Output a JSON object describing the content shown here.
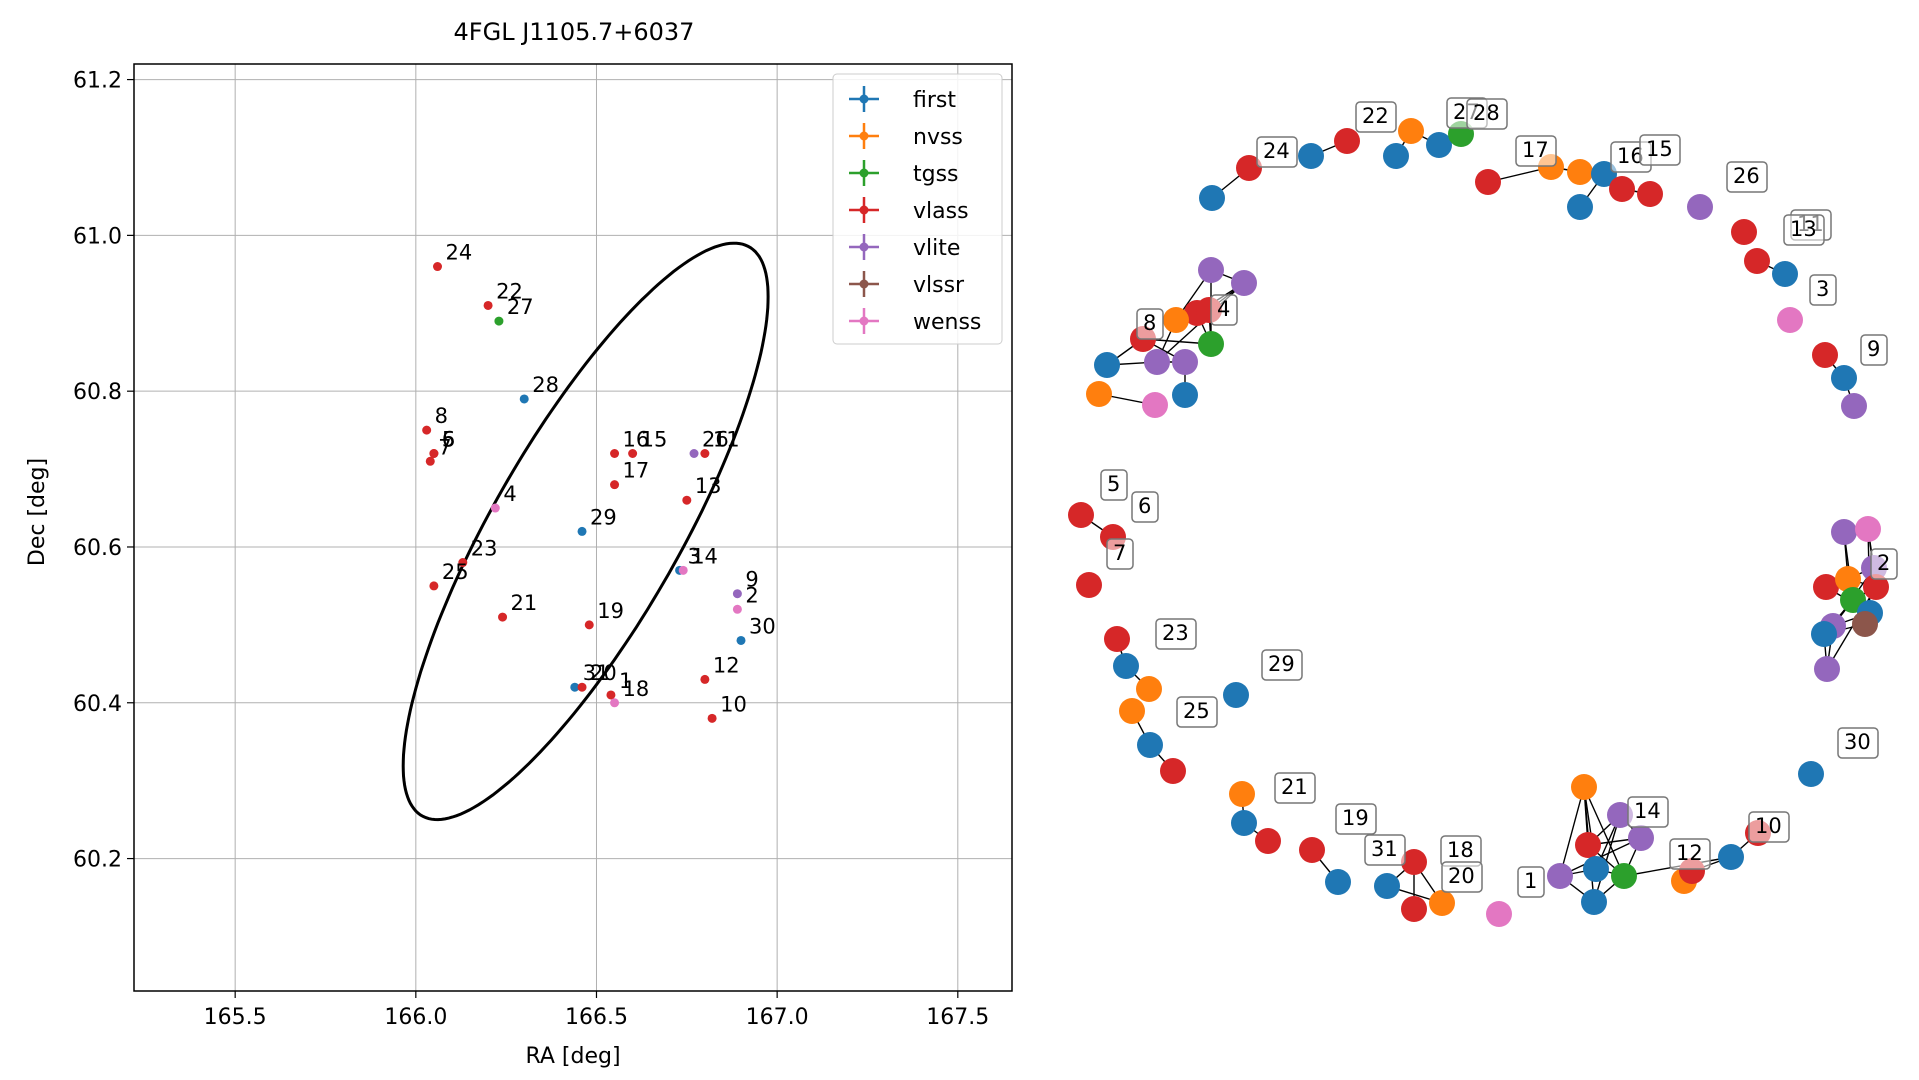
{
  "chart_data": [
    {
      "type": "scatter",
      "title": "4FGL J1105.7+6037",
      "xlabel": "RA [deg]",
      "ylabel": "Dec [deg]",
      "xlim": [
        165.22,
        167.65
      ],
      "ylim": [
        60.03,
        61.22
      ],
      "xticks": [
        165.5,
        166.0,
        166.5,
        167.0,
        167.5
      ],
      "xtick_labels": [
        "165.5",
        "166.0",
        "166.5",
        "167.0",
        "167.5"
      ],
      "yticks": [
        60.2,
        60.4,
        60.6,
        60.8,
        61.0,
        61.2
      ],
      "ytick_labels": [
        "60.2",
        "60.4",
        "60.6",
        "60.8",
        "61.0",
        "61.2"
      ],
      "grid": true,
      "legend_position": "top-right",
      "legend": [
        {
          "name": "first",
          "color": "#1f77b4"
        },
        {
          "name": "nvss",
          "color": "#ff7f0e"
        },
        {
          "name": "tgss",
          "color": "#2ca02c"
        },
        {
          "name": "vlass",
          "color": "#d62728"
        },
        {
          "name": "vlite",
          "color": "#9467bd"
        },
        {
          "name": "vlssr",
          "color": "#8c564b"
        },
        {
          "name": "wenss",
          "color": "#e377c2"
        }
      ],
      "ellipse": {
        "center": [
          166.47,
          60.62
        ],
        "extreme_ra": [
          165.94,
          166.95
        ],
        "extreme_dec": [
          60.25,
          60.99
        ],
        "color": "#000000"
      },
      "points": [
        {
          "label": "24",
          "ra": 166.06,
          "dec": 60.96,
          "color": "#d62728"
        },
        {
          "label": "22",
          "ra": 166.2,
          "dec": 60.91,
          "color": "#d62728"
        },
        {
          "label": "27",
          "ra": 166.23,
          "dec": 60.89,
          "color": "#2ca02c"
        },
        {
          "label": "28",
          "ra": 166.3,
          "dec": 60.79,
          "color": "#1f77b4"
        },
        {
          "label": "8",
          "ra": 166.03,
          "dec": 60.75,
          "color": "#d62728"
        },
        {
          "label": "5",
          "ra": 166.05,
          "dec": 60.72,
          "color": "#d62728"
        },
        {
          "label": "6",
          "ra": 166.05,
          "dec": 60.72,
          "color": "#d62728"
        },
        {
          "label": "7",
          "ra": 166.04,
          "dec": 60.71,
          "color": "#d62728"
        },
        {
          "label": "16",
          "ra": 166.55,
          "dec": 60.72,
          "color": "#d62728"
        },
        {
          "label": "15",
          "ra": 166.6,
          "dec": 60.72,
          "color": "#d62728"
        },
        {
          "label": "26",
          "ra": 166.77,
          "dec": 60.72,
          "color": "#9467bd"
        },
        {
          "label": "11",
          "ra": 166.8,
          "dec": 60.72,
          "color": "#d62728"
        },
        {
          "label": "17",
          "ra": 166.55,
          "dec": 60.68,
          "color": "#d62728"
        },
        {
          "label": "4",
          "ra": 166.22,
          "dec": 60.65,
          "color": "#e377c2"
        },
        {
          "label": "13",
          "ra": 166.75,
          "dec": 60.66,
          "color": "#d62728"
        },
        {
          "label": "29",
          "ra": 166.46,
          "dec": 60.62,
          "color": "#1f77b4"
        },
        {
          "label": "23",
          "ra": 166.13,
          "dec": 60.58,
          "color": "#d62728"
        },
        {
          "label": "3",
          "ra": 166.73,
          "dec": 60.57,
          "color": "#1f77b4"
        },
        {
          "label": "14",
          "ra": 166.74,
          "dec": 60.57,
          "color": "#e377c2"
        },
        {
          "label": "9",
          "ra": 166.89,
          "dec": 60.54,
          "color": "#9467bd"
        },
        {
          "label": "25",
          "ra": 166.05,
          "dec": 60.55,
          "color": "#d62728"
        },
        {
          "label": "2",
          "ra": 166.89,
          "dec": 60.52,
          "color": "#e377c2"
        },
        {
          "label": "21",
          "ra": 166.24,
          "dec": 60.51,
          "color": "#d62728"
        },
        {
          "label": "19",
          "ra": 166.48,
          "dec": 60.5,
          "color": "#d62728"
        },
        {
          "label": "30",
          "ra": 166.9,
          "dec": 60.48,
          "color": "#1f77b4"
        },
        {
          "label": "12",
          "ra": 166.8,
          "dec": 60.43,
          "color": "#d62728"
        },
        {
          "label": "31",
          "ra": 166.44,
          "dec": 60.42,
          "color": "#1f77b4"
        },
        {
          "label": "20",
          "ra": 166.46,
          "dec": 60.42,
          "color": "#d62728"
        },
        {
          "label": "1",
          "ra": 166.54,
          "dec": 60.41,
          "color": "#d62728"
        },
        {
          "label": "18",
          "ra": 166.55,
          "dec": 60.4,
          "color": "#e377c2"
        },
        {
          "label": "10",
          "ra": 166.82,
          "dec": 60.38,
          "color": "#d62728"
        }
      ]
    },
    {
      "type": "network",
      "nodes": [
        {
          "id": "n0",
          "label": "24",
          "color": "#d62728"
        },
        {
          "id": "n1",
          "color": "#1f77b4"
        },
        {
          "id": "n2",
          "color": "#1f77b4"
        },
        {
          "id": "n3",
          "label": "22",
          "color": "#d62728"
        },
        {
          "id": "n4",
          "color": "#1f77b4"
        },
        {
          "id": "n5",
          "color": "#ff7f0e"
        },
        {
          "id": "n6",
          "label": "27",
          "color": "#1f77b4"
        },
        {
          "id": "n7",
          "label": "28",
          "color": "#2ca02c"
        },
        {
          "id": "n8",
          "label": "17",
          "color": "#d62728"
        },
        {
          "id": "n9",
          "color": "#ff7f0e"
        },
        {
          "id": "n10",
          "color": "#ff7f0e"
        },
        {
          "id": "n11",
          "color": "#1f77b4"
        },
        {
          "id": "n12",
          "label": "16",
          "color": "#1f77b4"
        },
        {
          "id": "n13",
          "label": "15",
          "color": "#d62728"
        },
        {
          "id": "n14",
          "color": "#d62728"
        },
        {
          "id": "n15",
          "label": "26",
          "color": "#9467bd"
        },
        {
          "id": "n16",
          "label": "11",
          "color": "#d62728"
        },
        {
          "id": "n17",
          "label": "13",
          "color": "#d62728"
        },
        {
          "id": "n18",
          "color": "#1f77b4"
        },
        {
          "id": "n19",
          "label": "3",
          "color": "#e377c2"
        },
        {
          "id": "n20",
          "label": "9",
          "color": "#d62728"
        },
        {
          "id": "n21",
          "color": "#1f77b4"
        },
        {
          "id": "n22",
          "color": "#9467bd"
        },
        {
          "id": "n23",
          "color": "#9467bd"
        },
        {
          "id": "n24",
          "color": "#9467bd"
        },
        {
          "id": "n25",
          "color": "#d62728"
        },
        {
          "id": "n26",
          "color": "#ff7f0e"
        },
        {
          "id": "n27",
          "label": "4",
          "color": "#d62728"
        },
        {
          "id": "n28",
          "color": "#2ca02c"
        },
        {
          "id": "n29",
          "label": "8",
          "color": "#d62728"
        },
        {
          "id": "n30",
          "color": "#1f77b4"
        },
        {
          "id": "n31",
          "color": "#9467bd"
        },
        {
          "id": "n32",
          "color": "#9467bd"
        },
        {
          "id": "n33",
          "color": "#1f77b4"
        },
        {
          "id": "n34",
          "color": "#ff7f0e"
        },
        {
          "id": "n35",
          "color": "#e377c2"
        },
        {
          "id": "n36",
          "label": "5",
          "color": "#d62728"
        },
        {
          "id": "n37",
          "label": "6",
          "color": "#d62728"
        },
        {
          "id": "n38",
          "label": "7",
          "color": "#d62728"
        },
        {
          "id": "n39",
          "color": "#9467bd"
        },
        {
          "id": "n40",
          "color": "#e377c2"
        },
        {
          "id": "n41",
          "label": "2",
          "color": "#9467bd"
        },
        {
          "id": "n42",
          "color": "#d62728"
        },
        {
          "id": "n43",
          "color": "#ff7f0e"
        },
        {
          "id": "n44",
          "color": "#d62728"
        },
        {
          "id": "n45",
          "color": "#2ca02c"
        },
        {
          "id": "n46",
          "color": "#9467bd"
        },
        {
          "id": "n47",
          "color": "#1f77b4"
        },
        {
          "id": "n48",
          "color": "#8c564b"
        },
        {
          "id": "n49",
          "color": "#1f77b4"
        },
        {
          "id": "n50",
          "color": "#9467bd"
        },
        {
          "id": "n51",
          "label": "23",
          "color": "#d62728"
        },
        {
          "id": "n52",
          "color": "#1f77b4"
        },
        {
          "id": "n53",
          "color": "#ff7f0e"
        },
        {
          "id": "n54",
          "label": "25",
          "color": "#ff7f0e"
        },
        {
          "id": "n55",
          "color": "#1f77b4"
        },
        {
          "id": "n56",
          "color": "#d62728"
        },
        {
          "id": "n57",
          "label": "29",
          "color": "#1f77b4"
        },
        {
          "id": "n58",
          "label": "30",
          "color": "#1f77b4"
        },
        {
          "id": "n59",
          "label": "21",
          "color": "#ff7f0e"
        },
        {
          "id": "n60",
          "color": "#1f77b4"
        },
        {
          "id": "n61",
          "color": "#d62728"
        },
        {
          "id": "n62",
          "label": "19",
          "color": "#d62728"
        },
        {
          "id": "n63",
          "label": "31",
          "color": "#1f77b4"
        },
        {
          "id": "n64",
          "color": "#1f77b4"
        },
        {
          "id": "n65",
          "label": "18",
          "color": "#d62728"
        },
        {
          "id": "n66",
          "label": "20",
          "color": "#ff7f0e"
        },
        {
          "id": "n67",
          "color": "#d62728"
        },
        {
          "id": "n68",
          "label": "1",
          "color": "#e377c2"
        },
        {
          "id": "n69",
          "color": "#ff7f0e"
        },
        {
          "id": "n70",
          "color": "#d62728"
        },
        {
          "id": "n71",
          "label": "14",
          "color": "#9467bd"
        },
        {
          "id": "n72",
          "color": "#9467bd"
        },
        {
          "id": "n73",
          "color": "#9467bd"
        },
        {
          "id": "n74",
          "color": "#1f77b4"
        },
        {
          "id": "n75",
          "color": "#2ca02c"
        },
        {
          "id": "n76",
          "color": "#1f77b4"
        },
        {
          "id": "n77",
          "label": "12",
          "color": "#ff7f0e"
        },
        {
          "id": "n78",
          "color": "#d62728"
        },
        {
          "id": "n79",
          "color": "#1f77b4"
        },
        {
          "id": "n80",
          "label": "10",
          "color": "#d62728"
        }
      ],
      "edges": [
        [
          "n0",
          "n1"
        ],
        [
          "n2",
          "n3"
        ],
        [
          "n4",
          "n5"
        ],
        [
          "n5",
          "n6"
        ],
        [
          "n6",
          "n7"
        ],
        [
          "n8",
          "n9"
        ],
        [
          "n9",
          "n10"
        ],
        [
          "n11",
          "n12"
        ],
        [
          "n12",
          "n13"
        ],
        [
          "n13",
          "n14"
        ],
        [
          "n17",
          "n18"
        ],
        [
          "n20",
          "n21"
        ],
        [
          "n21",
          "n22"
        ],
        [
          "n23",
          "n24"
        ],
        [
          "n24",
          "n25"
        ],
        [
          "n25",
          "n26"
        ],
        [
          "n26",
          "n27"
        ],
        [
          "n27",
          "n28"
        ],
        [
          "n28",
          "n29"
        ],
        [
          "n29",
          "n30"
        ],
        [
          "n30",
          "n31"
        ],
        [
          "n31",
          "n32"
        ],
        [
          "n32",
          "n33"
        ],
        [
          "n23",
          "n26"
        ],
        [
          "n23",
          "n28"
        ],
        [
          "n24",
          "n27"
        ],
        [
          "n24",
          "n31"
        ],
        [
          "n25",
          "n28"
        ],
        [
          "n26",
          "n31"
        ],
        [
          "n29",
          "n32"
        ],
        [
          "n34",
          "n35"
        ],
        [
          "n36",
          "n37"
        ],
        [
          "n51",
          "n52"
        ],
        [
          "n52",
          "n53"
        ],
        [
          "n54",
          "n55"
        ],
        [
          "n55",
          "n56"
        ],
        [
          "n59",
          "n60"
        ],
        [
          "n60",
          "n61"
        ],
        [
          "n62",
          "n63"
        ],
        [
          "n64",
          "n65"
        ],
        [
          "n65",
          "n66"
        ],
        [
          "n64",
          "n66"
        ],
        [
          "n67",
          "n65"
        ],
        [
          "n39",
          "n40"
        ],
        [
          "n40",
          "n41"
        ],
        [
          "n41",
          "n42"
        ],
        [
          "n42",
          "n43"
        ],
        [
          "n43",
          "n44"
        ],
        [
          "n44",
          "n45"
        ],
        [
          "n45",
          "n46"
        ],
        [
          "n46",
          "n47"
        ],
        [
          "n47",
          "n48"
        ],
        [
          "n48",
          "n49"
        ],
        [
          "n49",
          "n50"
        ],
        [
          "n39",
          "n43"
        ],
        [
          "n39",
          "n45"
        ],
        [
          "n40",
          "n44"
        ],
        [
          "n40",
          "n47"
        ],
        [
          "n41",
          "n46"
        ],
        [
          "n42",
          "n47"
        ],
        [
          "n43",
          "n48"
        ],
        [
          "n44",
          "n50"
        ],
        [
          "n45",
          "n49"
        ],
        [
          "n46",
          "n50"
        ],
        [
          "n69",
          "n70"
        ],
        [
          "n70",
          "n71"
        ],
        [
          "n71",
          "n72"
        ],
        [
          "n72",
          "n73"
        ],
        [
          "n73",
          "n74"
        ],
        [
          "n74",
          "n75"
        ],
        [
          "n75",
          "n76"
        ],
        [
          "n69",
          "n73"
        ],
        [
          "n69",
          "n74"
        ],
        [
          "n69",
          "n75"
        ],
        [
          "n69",
          "n76"
        ],
        [
          "n70",
          "n72"
        ],
        [
          "n70",
          "n75"
        ],
        [
          "n71",
          "n74"
        ],
        [
          "n71",
          "n76"
        ],
        [
          "n72",
          "n75"
        ],
        [
          "n73",
          "n76"
        ],
        [
          "n75",
          "n79"
        ],
        [
          "n77",
          "n78"
        ],
        [
          "n78",
          "n79"
        ],
        [
          "n79",
          "n80"
        ]
      ]
    }
  ]
}
